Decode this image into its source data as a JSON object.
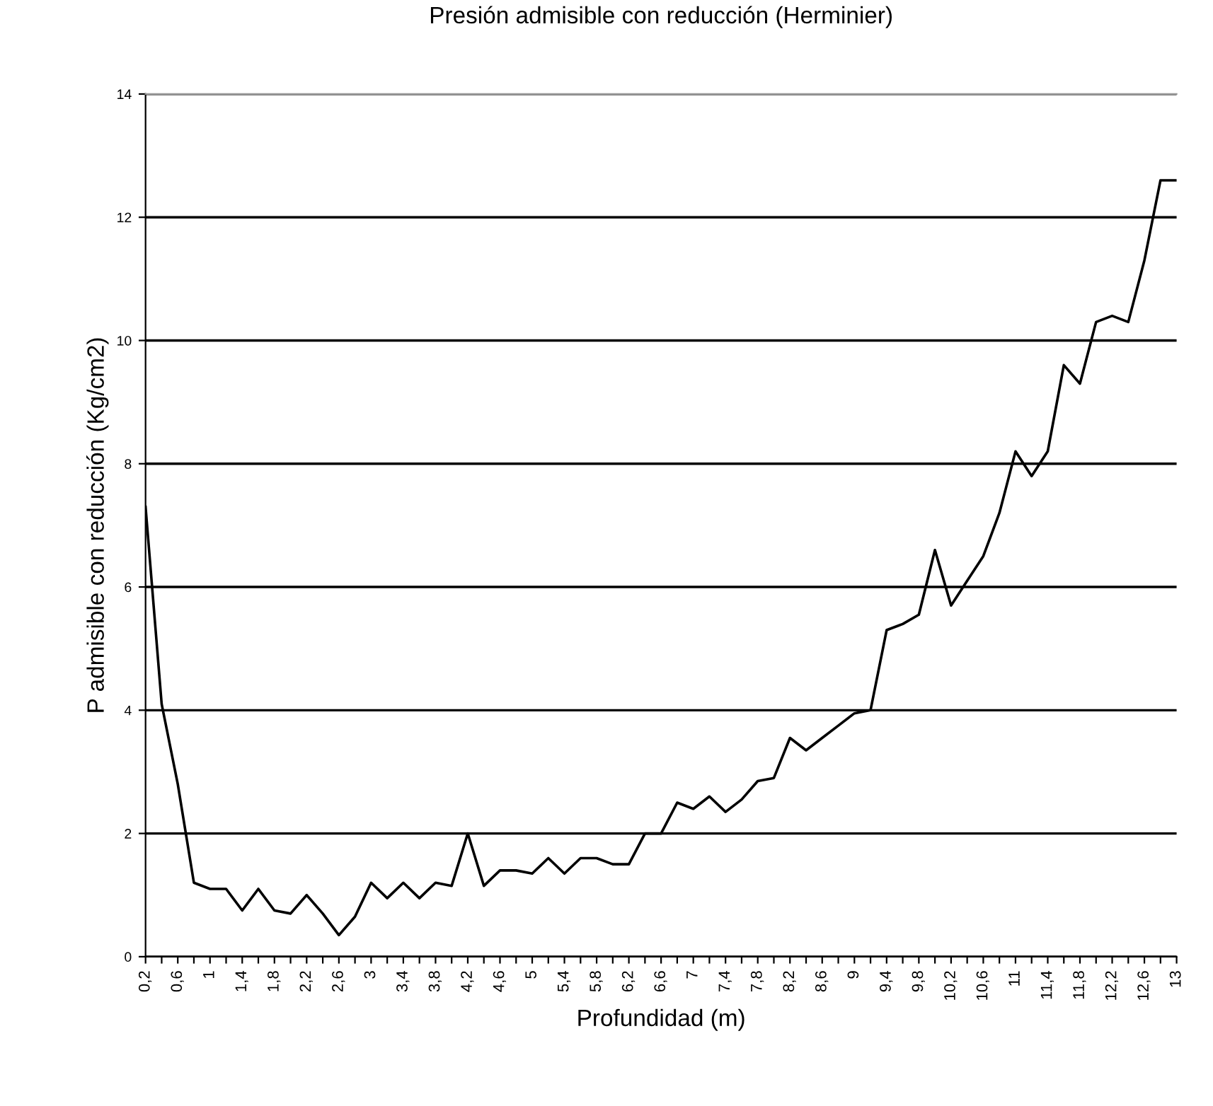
{
  "chart_data": {
    "type": "line",
    "title": "Presión admisible con reducción (Herminier)",
    "xlabel": "Profundidad (m)",
    "ylabel": "P admisible con reducción (Kg/cm2)",
    "categories": [
      "0,2",
      null,
      "0,6",
      null,
      "1",
      null,
      "1,4",
      null,
      "1,8",
      null,
      "2,2",
      null,
      "2,6",
      null,
      "3",
      null,
      "3,4",
      null,
      "3,8",
      null,
      "4,2",
      null,
      "4,6",
      null,
      "5",
      null,
      "5,4",
      null,
      "5,8",
      null,
      "6,2",
      null,
      "6,6",
      null,
      "7",
      null,
      "7,4",
      null,
      "7,8",
      null,
      "8,2",
      null,
      "8,6",
      null,
      "9",
      null,
      "9,4",
      null,
      "9,8",
      null,
      "10,2",
      null,
      "10,6",
      null,
      "11",
      null,
      "11,4",
      null,
      "11,8",
      null,
      "12,2",
      null,
      "12,6",
      null,
      "13"
    ],
    "series": [
      {
        "color": "#000000",
        "values": [
          7.3,
          4.1,
          2.8,
          1.2,
          1.1,
          1.1,
          0.75,
          1.1,
          0.75,
          0.7,
          1.0,
          0.7,
          0.35,
          0.65,
          1.2,
          0.95,
          1.2,
          0.95,
          1.2,
          1.15,
          2.0,
          1.15,
          1.4,
          1.4,
          1.35,
          1.6,
          1.35,
          1.6,
          1.6,
          1.5,
          1.5,
          2.0,
          2.0,
          2.5,
          2.4,
          2.6,
          2.35,
          2.55,
          2.85,
          2.9,
          3.55,
          3.35,
          3.55,
          3.75,
          3.95,
          4.0,
          5.3,
          5.4,
          5.55,
          6.6,
          5.7,
          6.1,
          6.5,
          7.2,
          8.2,
          7.8,
          8.2,
          9.6,
          9.3,
          10.3,
          10.4,
          10.3,
          11.3,
          12.6,
          12.6
        ]
      }
    ],
    "ylim": [
      0,
      14
    ],
    "yticks": [
      0,
      2,
      4,
      6,
      8,
      10,
      12,
      14
    ],
    "grid": "y",
    "marker": "none",
    "line_style": "solid",
    "legend": false
  }
}
